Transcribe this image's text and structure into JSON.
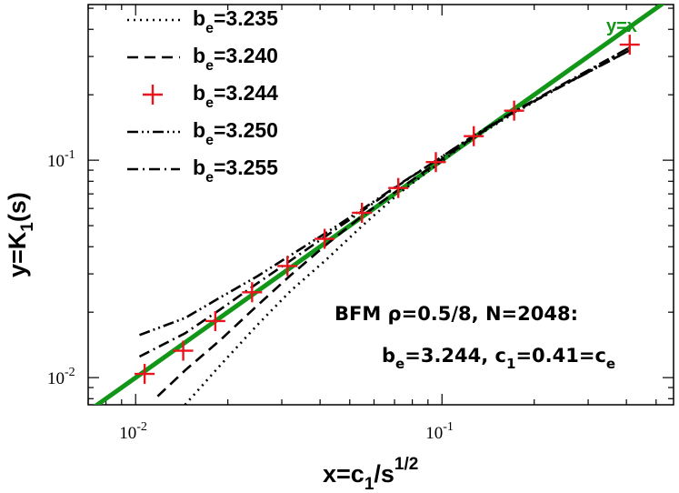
{
  "chart_data": {
    "type": "line",
    "x_scale": "log",
    "y_scale": "log",
    "xlim": [
      0.007,
      0.57
    ],
    "ylim": [
      0.0075,
      0.52
    ],
    "xticks": [
      {
        "value": 0.01,
        "mant": "10",
        "exp": "-2"
      },
      {
        "value": 0.1,
        "mant": "10",
        "exp": "-1"
      }
    ],
    "yticks": [
      {
        "value": 0.01,
        "mant": "10",
        "exp": "-2"
      },
      {
        "value": 0.1,
        "mant": "10",
        "exp": "-1"
      }
    ],
    "xlabel": {
      "main": "x=c",
      "sub": "1",
      "mid": "/s",
      "sup": "1/2"
    },
    "ylabel": {
      "main": "y=K",
      "sub": "1",
      "tail": "(s)"
    },
    "grid": false,
    "legend_position": "top-left",
    "series": [
      {
        "name_main": "b",
        "name_sub": "e",
        "name_tail": "=3.235",
        "style": "dotted",
        "color": "#000000",
        "x": [
          0.0145,
          0.019,
          0.025,
          0.032,
          0.042,
          0.055,
          0.072,
          0.095,
          0.125,
          0.17,
          0.24,
          0.41
        ],
        "y": [
          0.0075,
          0.0115,
          0.0175,
          0.025,
          0.035,
          0.05,
          0.07,
          0.094,
          0.125,
          0.163,
          0.215,
          0.33
        ]
      },
      {
        "name_main": "b",
        "name_sub": "e",
        "name_tail": "=3.240",
        "style": "dashed",
        "color": "#000000",
        "x": [
          0.0118,
          0.0145,
          0.019,
          0.025,
          0.032,
          0.042,
          0.055,
          0.072,
          0.095,
          0.125,
          0.17,
          0.24,
          0.41
        ],
        "y": [
          0.0082,
          0.0108,
          0.015,
          0.0215,
          0.0295,
          0.041,
          0.0555,
          0.073,
          0.096,
          0.126,
          0.165,
          0.216,
          0.32
        ]
      },
      {
        "name_main": "b",
        "name_sub": "e",
        "name_tail": "=3.244",
        "style": "markers",
        "color": "#e8141e",
        "x": [
          0.0107,
          0.0143,
          0.0182,
          0.024,
          0.0313,
          0.0414,
          0.0548,
          0.072,
          0.0955,
          0.127,
          0.172,
          0.41
        ],
        "y": [
          0.0104,
          0.0133,
          0.0182,
          0.0247,
          0.0326,
          0.0435,
          0.0573,
          0.0745,
          0.098,
          0.129,
          0.169,
          0.34
        ]
      },
      {
        "name_main": "b",
        "name_sub": "e",
        "name_tail": "=3.250",
        "style": "dashdotdot",
        "color": "#000000",
        "x": [
          0.0103,
          0.0145,
          0.019,
          0.025,
          0.032,
          0.042,
          0.055,
          0.072,
          0.095,
          0.125,
          0.17,
          0.24,
          0.41
        ],
        "y": [
          0.0157,
          0.0188,
          0.0235,
          0.0293,
          0.0365,
          0.0465,
          0.0595,
          0.077,
          0.099,
          0.128,
          0.165,
          0.215,
          0.32
        ]
      },
      {
        "name_main": "b",
        "name_sub": "e",
        "name_tail": "=3.255",
        "style": "dashdot",
        "color": "#000000",
        "x": [
          0.0103,
          0.0145,
          0.019,
          0.025,
          0.032,
          0.042,
          0.055,
          0.072,
          0.095,
          0.125,
          0.17,
          0.24,
          0.41
        ],
        "y": [
          0.0125,
          0.016,
          0.0207,
          0.0272,
          0.0345,
          0.045,
          0.0585,
          0.0765,
          0.099,
          0.128,
          0.166,
          0.218,
          0.33
        ]
      }
    ],
    "reference_line": {
      "label": "y=x",
      "color": "#129618"
    },
    "annotations": [
      {
        "id": "anno-line1",
        "text": "BFM ρ=0.5/8, N=2048:"
      },
      {
        "id": "anno-line2",
        "parts": {
          "a": "b",
          "a_sub": "e",
          "b": "=3.244, c",
          "b_sub": "1",
          "c": "=0.41=c",
          "c_sub": "e"
        }
      }
    ]
  }
}
